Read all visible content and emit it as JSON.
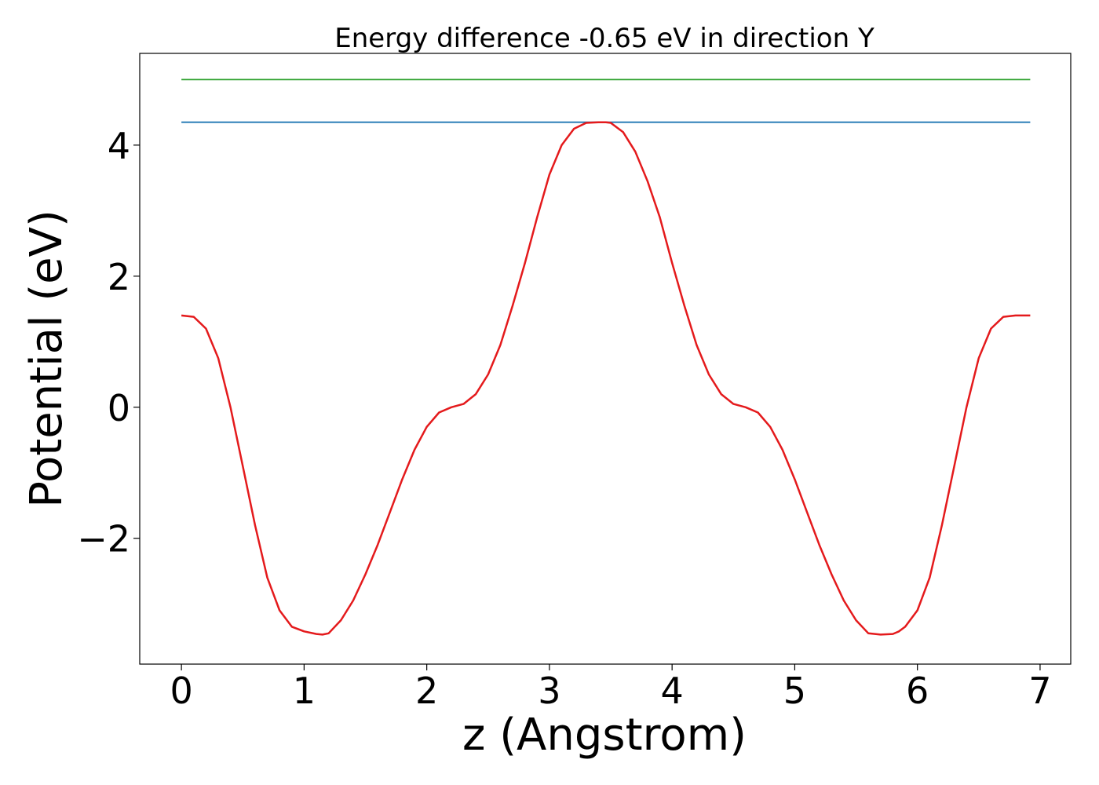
{
  "chart_data": {
    "type": "line",
    "title": "Energy difference -0.65 eV in direction Y",
    "xlabel": "z (Angstrom)",
    "ylabel": "Potential (eV)",
    "xlim": [
      -0.34,
      7.25
    ],
    "ylim": [
      -3.92,
      5.4
    ],
    "grid": false,
    "legend": "none",
    "xticks": [
      0,
      1,
      2,
      3,
      4,
      5,
      6,
      7
    ],
    "xtick_labels": [
      "0",
      "1",
      "2",
      "3",
      "4",
      "5",
      "6",
      "7"
    ],
    "yticks": [
      -2,
      0,
      2,
      4
    ],
    "ytick_labels": [
      "−2",
      "0",
      "2",
      "4"
    ],
    "series": [
      {
        "color": "#2ca02c",
        "x": [
          0.0,
          6.92
        ],
        "y": [
          5.0,
          5.0
        ]
      },
      {
        "color": "#1f77b4",
        "x": [
          0.0,
          6.92
        ],
        "y": [
          4.35,
          4.35
        ]
      },
      {
        "color": "#e41a1c",
        "x": [
          0.0,
          0.1,
          0.2,
          0.3,
          0.4,
          0.5,
          0.6,
          0.7,
          0.8,
          0.9,
          1.0,
          1.1,
          1.15,
          1.2,
          1.3,
          1.4,
          1.5,
          1.6,
          1.7,
          1.8,
          1.9,
          2.0,
          2.1,
          2.2,
          2.3,
          2.4,
          2.5,
          2.6,
          2.7,
          2.8,
          2.9,
          3.0,
          3.1,
          3.2,
          3.3,
          3.4,
          3.46,
          3.5,
          3.6,
          3.7,
          3.8,
          3.9,
          4.0,
          4.1,
          4.2,
          4.3,
          4.4,
          4.5,
          4.6,
          4.7,
          4.8,
          4.9,
          5.0,
          5.1,
          5.2,
          5.3,
          5.4,
          5.5,
          5.6,
          5.7,
          5.8,
          5.85,
          5.9,
          6.0,
          6.1,
          6.2,
          6.3,
          6.4,
          6.5,
          6.6,
          6.7,
          6.8,
          6.9,
          6.92
        ],
        "y": [
          1.4,
          1.38,
          1.2,
          0.75,
          0.0,
          -0.9,
          -1.8,
          -2.6,
          -3.1,
          -3.35,
          -3.42,
          -3.46,
          -3.47,
          -3.45,
          -3.25,
          -2.95,
          -2.55,
          -2.1,
          -1.6,
          -1.1,
          -0.65,
          -0.3,
          -0.08,
          0.0,
          0.05,
          0.2,
          0.5,
          0.95,
          1.55,
          2.2,
          2.9,
          3.55,
          4.0,
          4.25,
          4.34,
          4.35,
          4.35,
          4.34,
          4.2,
          3.9,
          3.45,
          2.9,
          2.2,
          1.55,
          0.95,
          0.5,
          0.2,
          0.05,
          0.0,
          -0.08,
          -0.3,
          -0.65,
          -1.1,
          -1.6,
          -2.1,
          -2.55,
          -2.95,
          -3.25,
          -3.45,
          -3.47,
          -3.46,
          -3.42,
          -3.35,
          -3.1,
          -2.6,
          -1.8,
          -0.9,
          0.0,
          0.75,
          1.2,
          1.38,
          1.4,
          1.4,
          1.4
        ]
      }
    ]
  }
}
